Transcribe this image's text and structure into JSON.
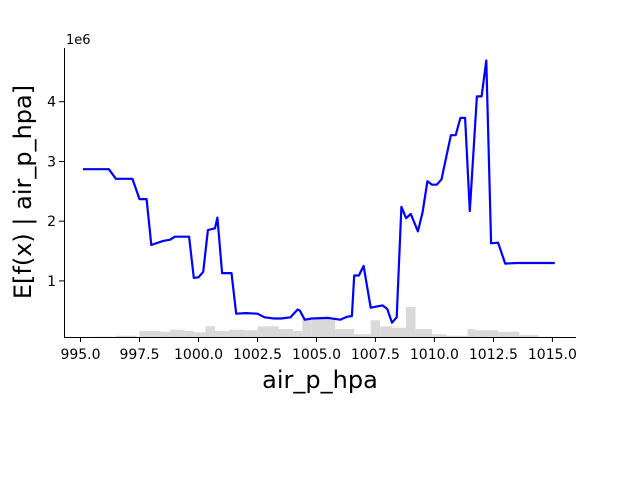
{
  "chart_data": {
    "type": "line",
    "title": "",
    "xlabel": "air_p_hpa",
    "ylabel": "E[f(x) | air_p_hpa]",
    "y_offset_label": "1e6",
    "xlim": [
      994.3,
      1016.0
    ],
    "ylim": [
      0.06,
      4.9
    ],
    "x_ticks": [
      995.0,
      997.5,
      1000.0,
      1002.5,
      1005.0,
      1007.5,
      1010.0,
      1012.5,
      1015.0
    ],
    "x_tick_labels": [
      "995.0",
      "997.5",
      "1000.0",
      "1002.5",
      "1005.0",
      "1007.5",
      "1010.0",
      "1012.5",
      "1015.0"
    ],
    "y_ticks": [
      1,
      2,
      3,
      4
    ],
    "y_tick_labels": [
      "1",
      "2",
      "3",
      "4"
    ],
    "grid": false,
    "line_color": "#0000ff",
    "hist_color": "#d9d9d9",
    "series": [
      {
        "x": [
          995.1,
          996.2,
          996.5,
          997.2,
          997.5,
          997.8,
          998.0,
          998.5,
          998.8,
          999.0,
          999.6,
          999.8,
          1000.0,
          1000.2,
          1000.4,
          1000.7,
          1000.8,
          1001.0,
          1001.4,
          1001.6,
          1002.0,
          1002.5,
          1002.8,
          1003.2,
          1003.5,
          1003.9,
          1004.2,
          1004.3,
          1004.5,
          1004.8,
          1005.5,
          1006.0,
          1006.3,
          1006.5,
          1006.6,
          1006.8,
          1007.0,
          1007.3,
          1007.8,
          1008.0,
          1008.2,
          1008.4,
          1008.5,
          1008.6,
          1008.8,
          1009.0,
          1009.3,
          1009.5,
          1009.7,
          1009.9,
          1010.1,
          1010.3,
          1010.7,
          1010.9,
          1011.1,
          1011.3,
          1011.5,
          1011.8,
          1012.0,
          1012.2,
          1012.4,
          1012.7,
          1013.0,
          1013.5,
          1015.1
        ],
        "y": [
          2.87,
          2.87,
          2.71,
          2.71,
          2.37,
          2.37,
          1.6,
          1.67,
          1.69,
          1.74,
          1.74,
          1.05,
          1.06,
          1.15,
          1.85,
          1.88,
          2.06,
          1.13,
          1.13,
          0.45,
          0.46,
          0.45,
          0.39,
          0.37,
          0.37,
          0.39,
          0.52,
          0.5,
          0.35,
          0.37,
          0.38,
          0.35,
          0.4,
          0.41,
          1.09,
          1.09,
          1.25,
          0.55,
          0.59,
          0.53,
          0.3,
          0.39,
          1.3,
          2.24,
          2.05,
          2.12,
          1.83,
          2.15,
          2.67,
          2.61,
          2.61,
          2.7,
          3.44,
          3.44,
          3.73,
          3.73,
          2.17,
          4.09,
          4.09,
          4.69,
          1.63,
          1.64,
          1.29,
          1.3,
          1.3
        ]
      }
    ],
    "histogram": {
      "x_start": [
        995.5,
        996.5,
        997.5,
        998.4,
        998.8,
        999.4,
        999.8,
        1000.3,
        1000.7,
        1001.3,
        1002.0,
        1002.5,
        1003.4,
        1004.0,
        1004.4,
        1004.8,
        1005.8,
        1006.6,
        1007.3,
        1007.7,
        1008.2,
        1008.8,
        1009.2,
        1009.9,
        1010.5,
        1011.4,
        1011.7,
        1012.7,
        1013.6,
        1014.4
      ],
      "x_end": [
        996.4,
        997.4,
        998.4,
        998.8,
        999.4,
        999.8,
        1000.3,
        1000.7,
        1001.3,
        1002.0,
        1002.5,
        1003.4,
        1004.0,
        1004.4,
        1004.8,
        1005.8,
        1006.6,
        1007.3,
        1007.7,
        1008.2,
        1008.8,
        1009.2,
        1009.9,
        1010.5,
        1011.4,
        1011.7,
        1012.7,
        1013.6,
        1014.4,
        1015.0
      ],
      "heights": [
        0.005,
        0.02,
        0.09,
        0.08,
        0.11,
        0.09,
        0.07,
        0.16,
        0.09,
        0.11,
        0.1,
        0.16,
        0.12,
        0.09,
        0.26,
        0.28,
        0.12,
        0.04,
        0.25,
        0.16,
        0.14,
        0.45,
        0.12,
        0.04,
        0.02,
        0.12,
        0.1,
        0.08,
        0.03,
        0.005
      ]
    }
  }
}
